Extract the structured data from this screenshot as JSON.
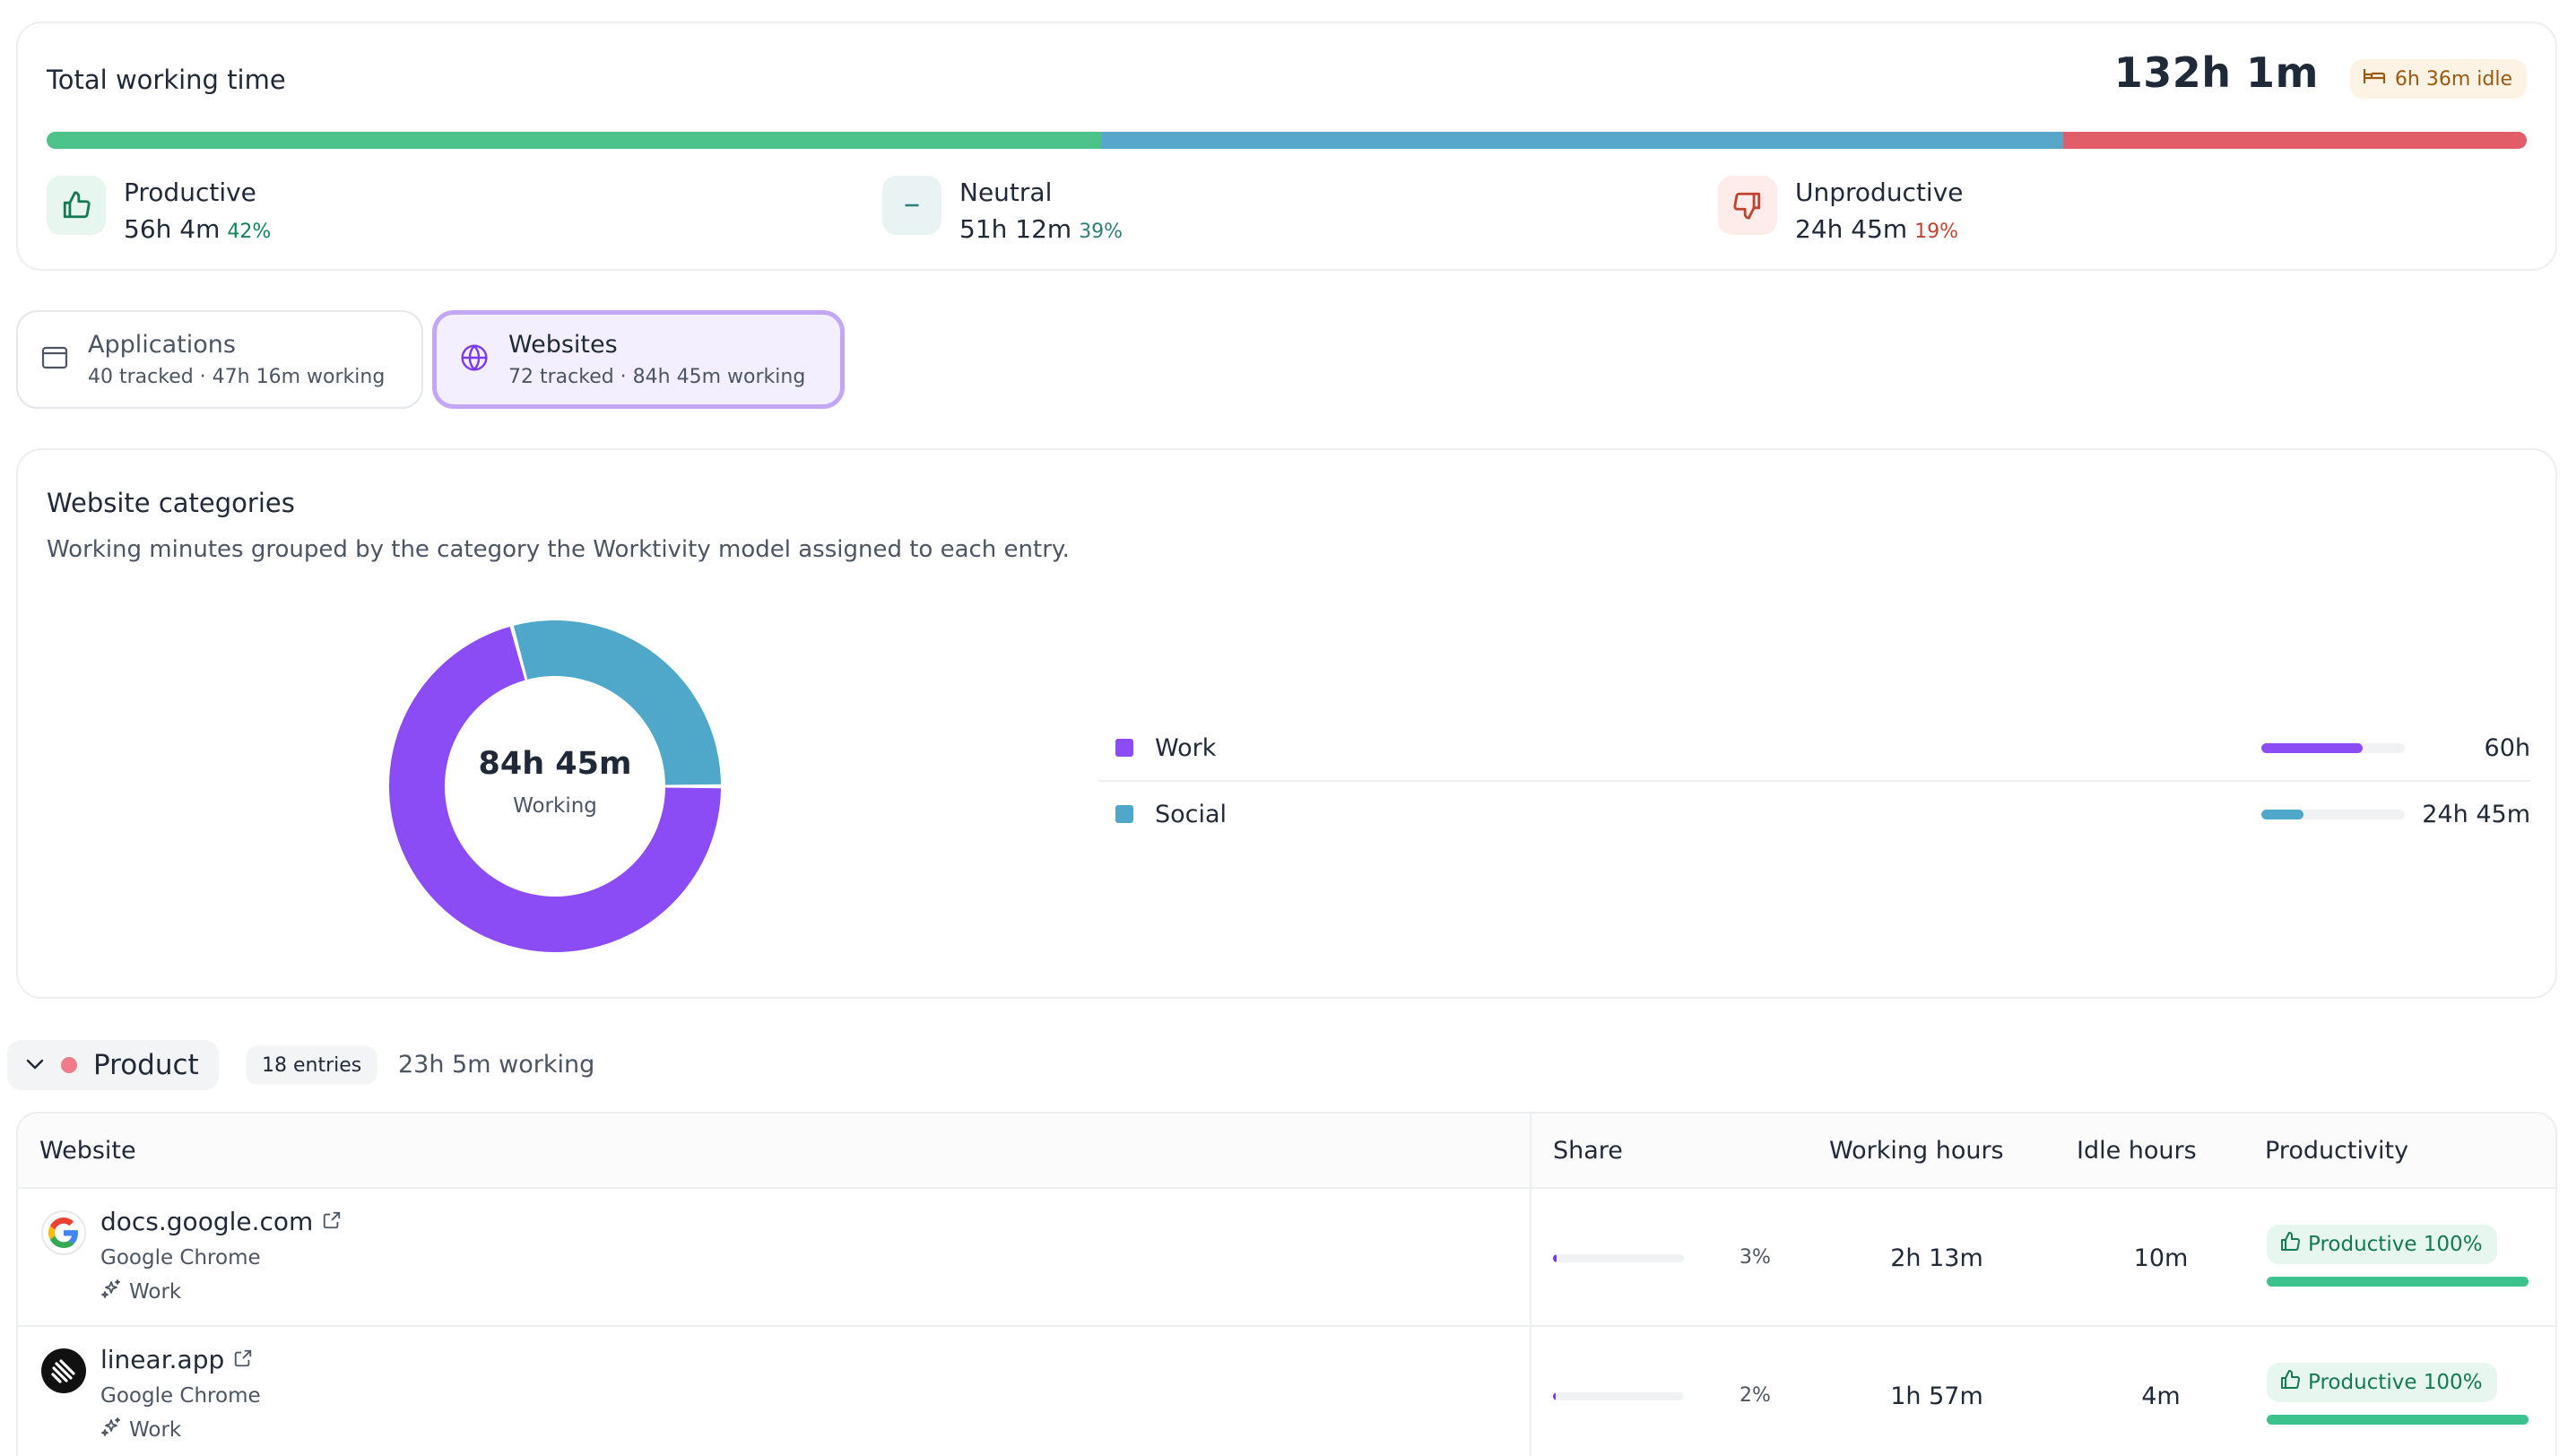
{
  "summary": {
    "title": "Total working time",
    "total": "132h 1m",
    "idle": "6h 36m idle",
    "bar": [
      {
        "name": "productive",
        "fraction": 0.425,
        "color": "#4cc38a"
      },
      {
        "name": "neutral",
        "fraction": 0.388,
        "color": "#56a7c9"
      },
      {
        "name": "unproductive",
        "fraction": 0.187,
        "color": "#e15d67"
      }
    ],
    "stats": [
      {
        "label": "Productive",
        "value": "56h 4m",
        "pct": "42%",
        "pct_color": "#11845b"
      },
      {
        "label": "Neutral",
        "value": "51h 12m",
        "pct": "39%",
        "pct_color": "#2f7d7a"
      },
      {
        "label": "Unproductive",
        "value": "24h 45m",
        "pct": "19%",
        "pct_color": "#c24230"
      }
    ]
  },
  "tabs": {
    "applications": {
      "label": "Applications",
      "meta": "40 tracked · 47h 16m working"
    },
    "websites": {
      "label": "Websites",
      "meta": "72 tracked · 84h 45m working"
    }
  },
  "categories": {
    "title": "Website categories",
    "subtitle": "Working minutes grouped by the category the Worktivity model assigned to each entry.",
    "center_value": "84h 45m",
    "center_label": "Working",
    "items": [
      {
        "name": "Work",
        "amount": "60h",
        "fraction": 0.708,
        "color": "#8b4cf6"
      },
      {
        "name": "Social",
        "amount": "24h 45m",
        "fraction": 0.292,
        "color": "#4fa7c9"
      }
    ]
  },
  "group": {
    "name": "Product",
    "entries": "18 entries",
    "working": "23h 5m working"
  },
  "table": {
    "headers": {
      "website": "Website",
      "share": "Share",
      "working": "Working hours",
      "idle": "Idle hours",
      "productivity": "Productivity"
    },
    "rows": [
      {
        "site": "docs.google.com",
        "app": "Google Chrome",
        "category": "Work",
        "share": "3%",
        "share_fraction": 0.03,
        "working": "2h 13m",
        "idle": "10m",
        "productivity": "Productive 100%",
        "favicon": "google-icon"
      },
      {
        "site": "linear.app",
        "app": "Google Chrome",
        "category": "Work",
        "share": "2%",
        "share_fraction": 0.02,
        "working": "1h 57m",
        "idle": "4m",
        "productivity": "Productive 100%",
        "favicon": "linear-icon"
      }
    ]
  }
}
